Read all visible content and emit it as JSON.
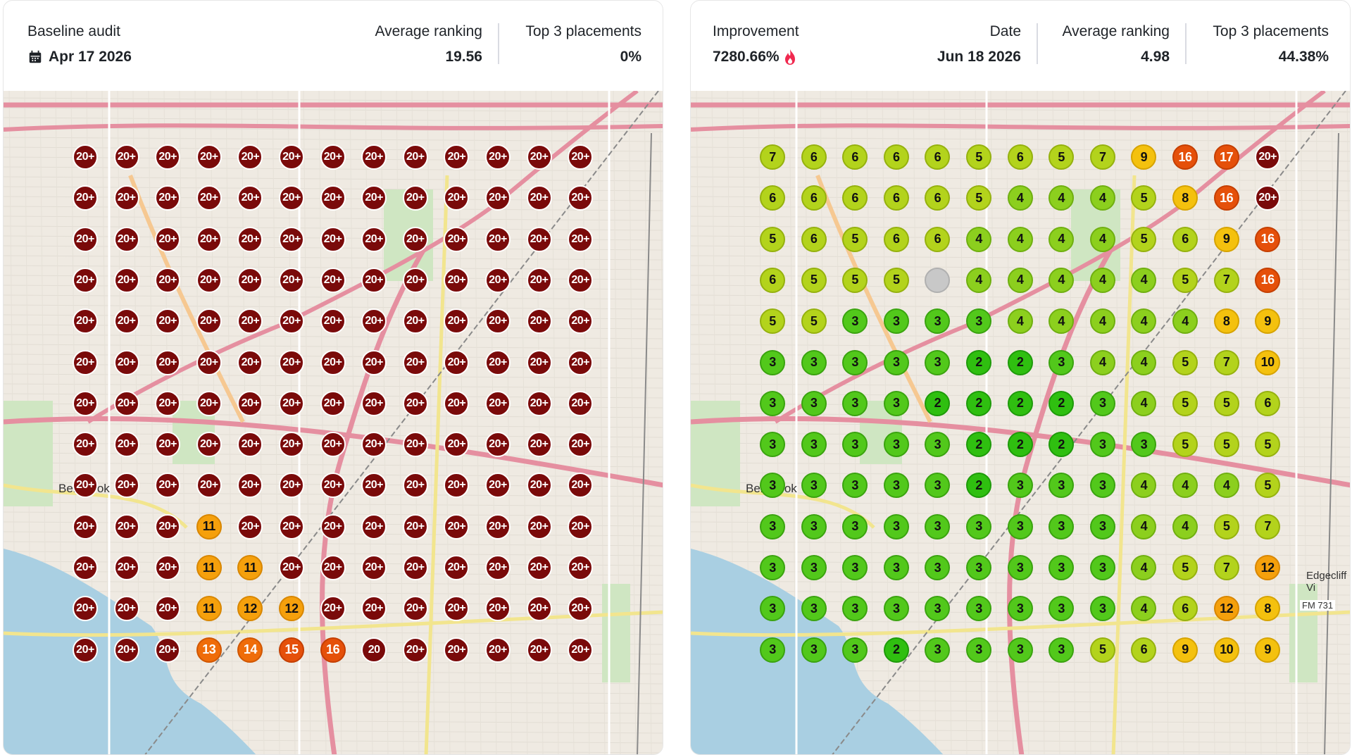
{
  "left_panel": {
    "title": "Baseline audit",
    "date": "Apr 17 2026",
    "avg_label": "Average ranking",
    "avg_value": "19.56",
    "top3_label": "Top 3 placements",
    "top3_value": "0%",
    "map_labels": [
      "Benbrook"
    ],
    "grid": [
      [
        "20+",
        "20+",
        "20+",
        "20+",
        "20+",
        "20+",
        "20+",
        "20+",
        "20+",
        "20+",
        "20+",
        "20+",
        "20+"
      ],
      [
        "20+",
        "20+",
        "20+",
        "20+",
        "20+",
        "20+",
        "20+",
        "20+",
        "20+",
        "20+",
        "20+",
        "20+",
        "20+"
      ],
      [
        "20+",
        "20+",
        "20+",
        "20+",
        "20+",
        "20+",
        "20+",
        "20+",
        "20+",
        "20+",
        "20+",
        "20+",
        "20+"
      ],
      [
        "20+",
        "20+",
        "20+",
        "20+",
        "20+",
        "20+",
        "20+",
        "20+",
        "20+",
        "20+",
        "20+",
        "20+",
        "20+"
      ],
      [
        "20+",
        "20+",
        "20+",
        "20+",
        "20+",
        "20+",
        "20+",
        "20+",
        "20+",
        "20+",
        "20+",
        "20+",
        "20+"
      ],
      [
        "20+",
        "20+",
        "20+",
        "20+",
        "20+",
        "20+",
        "20+",
        "20+",
        "20+",
        "20+",
        "20+",
        "20+",
        "20+"
      ],
      [
        "20+",
        "20+",
        "20+",
        "20+",
        "20+",
        "20+",
        "20+",
        "20+",
        "20+",
        "20+",
        "20+",
        "20+",
        "20+"
      ],
      [
        "20+",
        "20+",
        "20+",
        "20+",
        "20+",
        "20+",
        "20+",
        "20+",
        "20+",
        "20+",
        "20+",
        "20+",
        "20+"
      ],
      [
        "20+",
        "20+",
        "20+",
        "20+",
        "20+",
        "20+",
        "20+",
        "20+",
        "20+",
        "20+",
        "20+",
        "20+",
        "20+"
      ],
      [
        "20+",
        "20+",
        "20+",
        "11",
        "20+",
        "20+",
        "20+",
        "20+",
        "20+",
        "20+",
        "20+",
        "20+",
        "20+"
      ],
      [
        "20+",
        "20+",
        "20+",
        "11",
        "11",
        "20+",
        "20+",
        "20+",
        "20+",
        "20+",
        "20+",
        "20+",
        "20+"
      ],
      [
        "20+",
        "20+",
        "20+",
        "11",
        "12",
        "12",
        "20+",
        "20+",
        "20+",
        "20+",
        "20+",
        "20+",
        "20+"
      ],
      [
        "20+",
        "20+",
        "20+",
        "13",
        "14",
        "15",
        "16",
        "20",
        "20+",
        "20+",
        "20+",
        "20+",
        "20+"
      ]
    ]
  },
  "right_panel": {
    "improvement_label": "Improvement",
    "improvement_value": "7280.66%",
    "date_label": "Date",
    "date_value": "Jun 18 2026",
    "avg_label": "Average ranking",
    "avg_value": "4.98",
    "top3_label": "Top 3 placements",
    "top3_value": "44.38%",
    "map_labels": [
      "Benbrook",
      "Edgecliff Vi",
      "FM 731"
    ],
    "grid": [
      [
        "7",
        "6",
        "6",
        "6",
        "6",
        "5",
        "6",
        "5",
        "7",
        "9",
        "16",
        "17",
        "20+"
      ],
      [
        "6",
        "6",
        "6",
        "6",
        "6",
        "5",
        "4",
        "4",
        "4",
        "5",
        "8",
        "16",
        "20+"
      ],
      [
        "5",
        "6",
        "5",
        "6",
        "6",
        "4",
        "4",
        "4",
        "4",
        "5",
        "6",
        "9",
        "16"
      ],
      [
        "6",
        "5",
        "5",
        "5",
        "",
        "4",
        "4",
        "4",
        "4",
        "4",
        "5",
        "7",
        "16"
      ],
      [
        "5",
        "5",
        "3",
        "3",
        "3",
        "3",
        "4",
        "4",
        "4",
        "4",
        "4",
        "8",
        "9"
      ],
      [
        "3",
        "3",
        "3",
        "3",
        "3",
        "2",
        "2",
        "3",
        "4",
        "4",
        "5",
        "7",
        "10"
      ],
      [
        "3",
        "3",
        "3",
        "3",
        "2",
        "2",
        "2",
        "2",
        "3",
        "4",
        "5",
        "5",
        "6"
      ],
      [
        "3",
        "3",
        "3",
        "3",
        "3",
        "2",
        "2",
        "2",
        "3",
        "3",
        "5",
        "5",
        "5"
      ],
      [
        "3",
        "3",
        "3",
        "3",
        "3",
        "2",
        "3",
        "3",
        "3",
        "4",
        "4",
        "4",
        "5"
      ],
      [
        "3",
        "3",
        "3",
        "3",
        "3",
        "3",
        "3",
        "3",
        "3",
        "4",
        "4",
        "5",
        "7"
      ],
      [
        "3",
        "3",
        "3",
        "3",
        "3",
        "3",
        "3",
        "3",
        "3",
        "4",
        "5",
        "7",
        "12"
      ],
      [
        "3",
        "3",
        "3",
        "3",
        "3",
        "3",
        "3",
        "3",
        "3",
        "4",
        "6",
        "12",
        "8"
      ],
      [
        "3",
        "3",
        "3",
        "2",
        "3",
        "3",
        "3",
        "3",
        "5",
        "6",
        "9",
        "10",
        "9"
      ]
    ]
  },
  "icons": {
    "calendar": "calendar-icon",
    "flame": "flame-icon"
  }
}
